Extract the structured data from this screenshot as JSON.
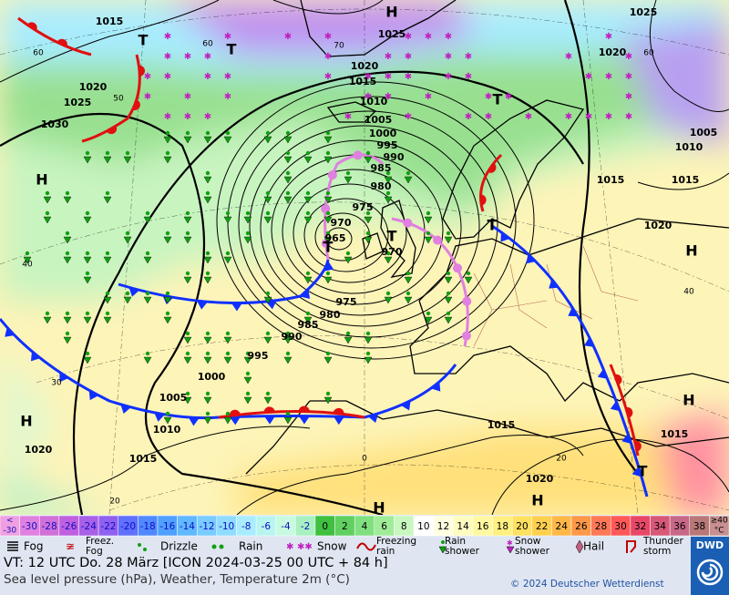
{
  "map": {
    "labels": [
      "1015",
      "1025",
      "H",
      "1025",
      "1020",
      "1015",
      "1010",
      "1005",
      "1000",
      "995",
      "990",
      "985",
      "980",
      "975",
      "970",
      "965",
      "970",
      "975",
      "980",
      "985",
      "990",
      "995",
      "1000",
      "1005",
      "1010",
      "1015",
      "1015",
      "1020",
      "1015",
      "1015",
      "1020",
      "1010",
      "1005",
      "1020",
      "1030",
      "1025",
      "1020",
      "1020",
      "1015",
      "H",
      "H",
      "H",
      "H",
      "H",
      "H",
      "T",
      "T",
      "T",
      "T",
      "T",
      "T",
      "T",
      "60",
      "60",
      "70",
      "60",
      "50",
      "40",
      "30",
      "20",
      "20",
      "0",
      "40"
    ]
  },
  "temperature_scale": {
    "items": [
      {
        "lines": [
          "<",
          "-30"
        ],
        "color": "#f0a0e0"
      },
      {
        "lines": [
          "-30"
        ],
        "color": "#e080e0"
      },
      {
        "lines": [
          "-28"
        ],
        "color": "#d070d8"
      },
      {
        "lines": [
          "-26"
        ],
        "color": "#c060e0"
      },
      {
        "lines": [
          "-24"
        ],
        "color": "#a860e8"
      },
      {
        "lines": [
          "-22"
        ],
        "color": "#9060f0"
      },
      {
        "lines": [
          "-20"
        ],
        "color": "#6070ff"
      },
      {
        "lines": [
          "-18"
        ],
        "color": "#5088ff"
      },
      {
        "lines": [
          "-16"
        ],
        "color": "#50a0ff"
      },
      {
        "lines": [
          "-14"
        ],
        "color": "#60b8ff"
      },
      {
        "lines": [
          "-12"
        ],
        "color": "#78ccff"
      },
      {
        "lines": [
          "-10"
        ],
        "color": "#90dcff"
      },
      {
        "lines": [
          "-8"
        ],
        "color": "#a8ecff"
      },
      {
        "lines": [
          "-6"
        ],
        "color": "#b8f4f0"
      },
      {
        "lines": [
          "-4"
        ],
        "color": "#c8fae0"
      },
      {
        "lines": [
          "-2"
        ],
        "color": "#a8f0c0"
      },
      {
        "lines": [
          "0"
        ],
        "color": "#40c040"
      },
      {
        "lines": [
          "2"
        ],
        "color": "#60d060"
      },
      {
        "lines": [
          "4"
        ],
        "color": "#80e080"
      },
      {
        "lines": [
          "6"
        ],
        "color": "#a0ec98"
      },
      {
        "lines": [
          "8"
        ],
        "color": "#c8f8c0"
      },
      {
        "lines": [
          "10"
        ],
        "color": "#ffffff"
      },
      {
        "lines": [
          "12"
        ],
        "color": "#ffffe0"
      },
      {
        "lines": [
          "14"
        ],
        "color": "#fffcc0"
      },
      {
        "lines": [
          "16"
        ],
        "color": "#fff8a0"
      },
      {
        "lines": [
          "18"
        ],
        "color": "#fff080"
      },
      {
        "lines": [
          "20"
        ],
        "color": "#ffe060"
      },
      {
        "lines": [
          "22"
        ],
        "color": "#ffd050"
      },
      {
        "lines": [
          "24"
        ],
        "color": "#ffb848"
      },
      {
        "lines": [
          "26"
        ],
        "color": "#ff9848"
      },
      {
        "lines": [
          "28"
        ],
        "color": "#ff7858"
      },
      {
        "lines": [
          "30"
        ],
        "color": "#ff5858"
      },
      {
        "lines": [
          "32"
        ],
        "color": "#e84868"
      },
      {
        "lines": [
          "34"
        ],
        "color": "#d85878"
      },
      {
        "lines": [
          "36"
        ],
        "color": "#c86888"
      },
      {
        "lines": [
          "38"
        ],
        "color": "#b87878"
      },
      {
        "lines": [
          "≥40",
          "°C"
        ],
        "color": "#c89090"
      }
    ]
  },
  "legend": {
    "items": [
      {
        "lines": [
          "Fog"
        ]
      },
      {
        "lines": [
          "Freez.",
          "Fog"
        ]
      },
      {
        "lines": [
          "Drizzle"
        ]
      },
      {
        "lines": [
          "Rain"
        ]
      },
      {
        "lines": [
          "Snow"
        ]
      },
      {
        "lines": [
          "Freezing",
          "rain"
        ]
      },
      {
        "lines": [
          "Rain",
          "shower"
        ]
      },
      {
        "lines": [
          "Snow",
          "shower"
        ]
      },
      {
        "lines": [
          "Hail"
        ]
      },
      {
        "lines": [
          "Thunder",
          "storm"
        ]
      }
    ]
  },
  "footer": {
    "valid_time": "VT: 12 UTC Do.  28 März [ICON 2024-03-25  00 UTC + 84 h]",
    "description": "Sea level pressure (hPa), Weather, Temperature 2m (°C)",
    "copyright": "© 2024 Deutscher Wetterdienst",
    "logo": "DWD"
  }
}
